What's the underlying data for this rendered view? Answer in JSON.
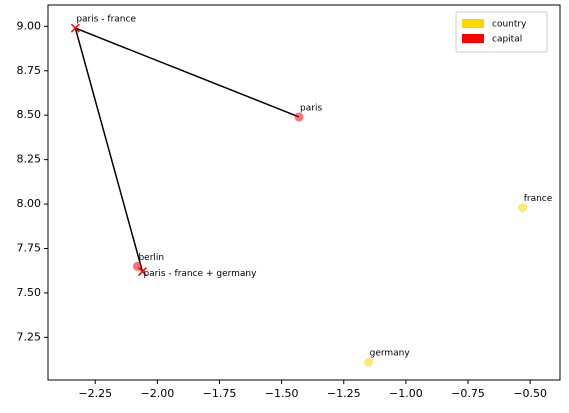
{
  "chart_data": {
    "type": "scatter",
    "series": [
      {
        "name": "country",
        "color": "#FFD700",
        "labels": [
          "france",
          "germany"
        ],
        "x": [
          -0.53,
          -1.15
        ],
        "values": [
          7.98,
          7.11
        ]
      },
      {
        "name": "capital",
        "color": "#FF0000",
        "labels": [
          "paris",
          "berlin"
        ],
        "x": [
          -1.43,
          -2.08
        ],
        "values": [
          8.49,
          7.65
        ]
      }
    ],
    "results": {
      "color": "#FF0000",
      "marker": "x",
      "labels": [
        "paris - france",
        "paris - france + germany"
      ],
      "x": [
        -2.33,
        -2.06
      ],
      "values": [
        8.99,
        7.62
      ]
    },
    "xlim": [
      -2.44,
      -0.38
    ],
    "ylim": [
      7.01,
      9.12
    ],
    "xticks": [
      {
        "value": -2.25,
        "label": "−2.25"
      },
      {
        "value": -2.0,
        "label": "−2.00"
      },
      {
        "value": -1.75,
        "label": "−1.75"
      },
      {
        "value": -1.5,
        "label": "−1.50"
      },
      {
        "value": -1.25,
        "label": "−1.25"
      },
      {
        "value": -1.0,
        "label": "−1.00"
      },
      {
        "value": -0.75,
        "label": "−0.75"
      },
      {
        "value": -0.5,
        "label": "−0.50"
      }
    ],
    "yticks": [
      7.25,
      {
        "value": 7.5,
        "label": "7.50"
      },
      7.75,
      {
        "value": 8.0,
        "label": "8.00"
      },
      8.25,
      {
        "value": 8.5,
        "label": "8.50"
      },
      8.75,
      {
        "value": 9.0,
        "label": "9.00"
      }
    ],
    "grid": false,
    "legend": "upper right"
  }
}
